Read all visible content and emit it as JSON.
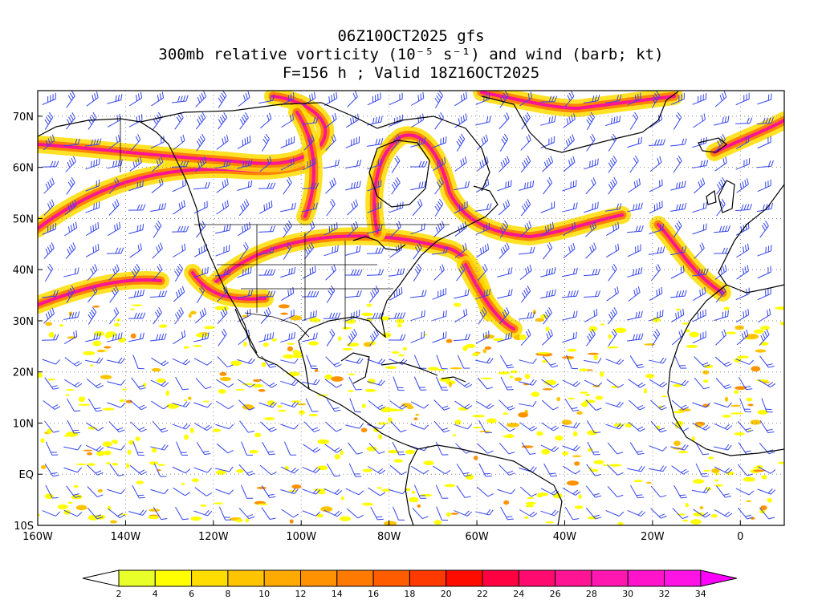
{
  "title": {
    "line1": "06Z10OCT2025 gfs",
    "line2": "300mb relative vorticity (10⁻⁵ s⁻¹) and wind (barb; kt)",
    "line3": "F=156 h ; Valid 18Z16OCT2025"
  },
  "map": {
    "lat_labels": [
      "70N",
      "60N",
      "50N",
      "40N",
      "30N",
      "20N",
      "10N",
      "EQ",
      "10S"
    ],
    "lon_labels": [
      "160W",
      "140W",
      "120W",
      "100W",
      "80W",
      "60W",
      "40W",
      "20W",
      "0"
    ],
    "extent": {
      "lon": [
        -160,
        10
      ],
      "lat": [
        -10,
        75
      ]
    },
    "gridlines": true,
    "wind_barb_color": "#3344ee",
    "coast_color": "#000000"
  },
  "colorbar": {
    "labels": [
      "2",
      "4",
      "6",
      "8",
      "10",
      "12",
      "14",
      "16",
      "18",
      "20",
      "22",
      "24",
      "26",
      "28",
      "30",
      "32",
      "34"
    ],
    "colors": [
      "#e8ff2a",
      "#ffff00",
      "#ffdd00",
      "#ffc400",
      "#ffaa00",
      "#ff9200",
      "#ff7a00",
      "#ff5c00",
      "#ff3a00",
      "#ff0c00",
      "#ff0040",
      "#ff0a6e",
      "#ff1493",
      "#ff17b0",
      "#ff14cc",
      "#ff14e6",
      "#ff00ff"
    ]
  }
}
